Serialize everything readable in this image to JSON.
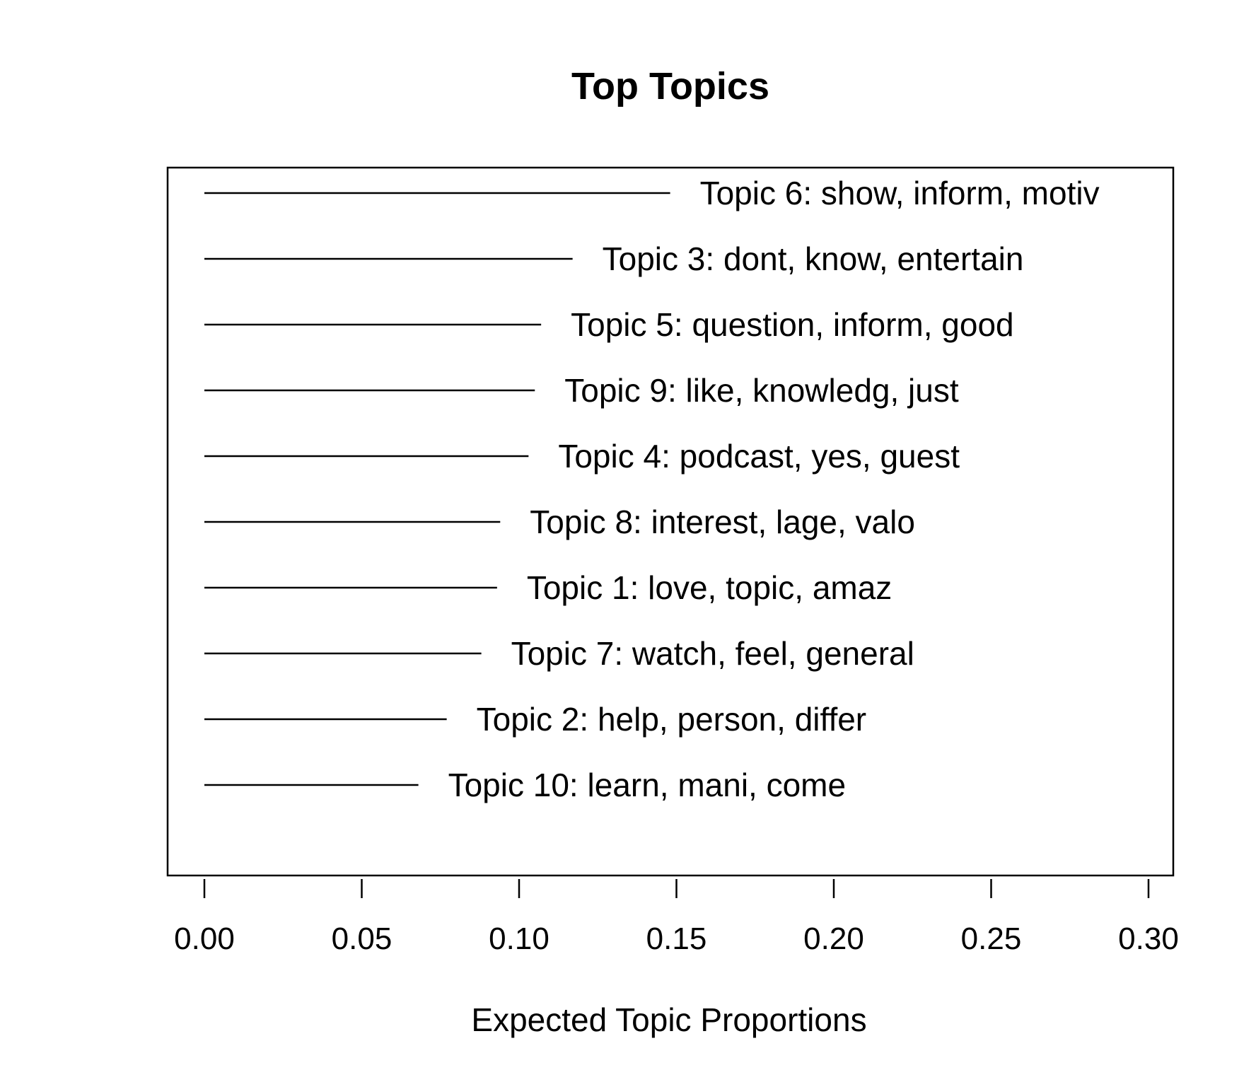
{
  "chart_data": {
    "type": "bar",
    "orientation": "horizontal",
    "title": "Top Topics",
    "xlabel": "Expected Topic Proportions",
    "ylabel": "",
    "xlim": [
      0,
      0.3
    ],
    "x_ticks": [
      "0.00",
      "0.05",
      "0.10",
      "0.15",
      "0.20",
      "0.25",
      "0.30"
    ],
    "grid": false,
    "categories": [
      "Topic 6: show, inform, motiv",
      "Topic 3: dont, know, entertain",
      "Topic 5: question, inform, good",
      "Topic 9: like, knowledg, just",
      "Topic 4: podcast, yes, guest",
      "Topic 8: interest, lage, valo",
      "Topic 1: love, topic, amaz",
      "Topic 7: watch, feel, general",
      "Topic 2: help, person, differ",
      "Topic 10: learn, mani, come"
    ],
    "values": [
      0.148,
      0.117,
      0.107,
      0.105,
      0.103,
      0.094,
      0.093,
      0.088,
      0.077,
      0.068
    ]
  }
}
